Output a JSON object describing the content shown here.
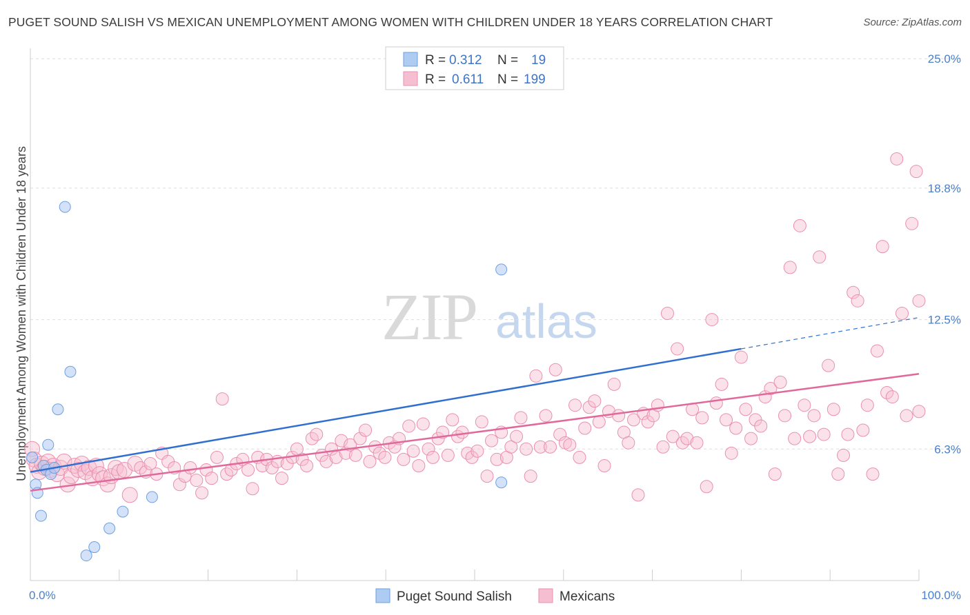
{
  "title": "PUGET SOUND SALISH VS MEXICAN UNEMPLOYMENT AMONG WOMEN WITH CHILDREN UNDER 18 YEARS CORRELATION CHART",
  "source": "Source: ZipAtlas.com",
  "watermark": {
    "zip": "ZIP",
    "atlas": "atlas"
  },
  "colors": {
    "puget_fill": "#aecbf2",
    "puget_stroke": "#6e9fe0",
    "puget_line": "#2f6fcf",
    "mex_fill": "#f6bfd1",
    "mex_stroke": "#e98fb0",
    "mex_line": "#e0689a",
    "tick_text": "#4a7fc9",
    "grid": "#dddddd"
  },
  "legend": {
    "rows": [
      {
        "r_label": "R =",
        "r_value": "0.312",
        "n_label": "N =",
        "n_value": "19"
      },
      {
        "r_label": "R =",
        "r_value": "0.611",
        "n_label": "N =",
        "n_value": "199"
      }
    ]
  },
  "chart_data": {
    "type": "scatter",
    "title": "PUGET SOUND SALISH VS MEXICAN UNEMPLOYMENT AMONG WOMEN WITH CHILDREN UNDER 18 YEARS CORRELATION CHART",
    "xlabel": "",
    "ylabel": "Unemployment Among Women with Children Under 18 years",
    "xlim": [
      0,
      100
    ],
    "ylim": [
      0,
      25.5
    ],
    "x_tick_labels": [
      "0.0%",
      "100.0%"
    ],
    "y_ticks": [
      6.3,
      12.5,
      18.8,
      25.0
    ],
    "y_tick_labels": [
      "6.3%",
      "12.5%",
      "18.8%",
      "25.0%"
    ],
    "grid": "horizontal dashed",
    "legend_placement": "top-center",
    "series": [
      {
        "name": "Puget Sound Salish",
        "r": 0.312,
        "n": 19,
        "trend": {
          "x": [
            0,
            80
          ],
          "y": [
            5.2,
            11.1
          ],
          "dashed_extension": {
            "x": [
              80,
              100
            ],
            "y": [
              11.1,
              12.6
            ]
          }
        },
        "points": [
          [
            0.2,
            5.9
          ],
          [
            0.6,
            4.6
          ],
          [
            0.8,
            4.2
          ],
          [
            1.2,
            3.1
          ],
          [
            1.5,
            5.5
          ],
          [
            1.8,
            5.3
          ],
          [
            2.0,
            6.5
          ],
          [
            2.3,
            5.1
          ],
          [
            2.7,
            5.4
          ],
          [
            3.1,
            8.2
          ],
          [
            3.9,
            17.9
          ],
          [
            4.5,
            10.0
          ],
          [
            6.3,
            1.2
          ],
          [
            7.2,
            1.6
          ],
          [
            8.9,
            2.5
          ],
          [
            10.4,
            3.3
          ],
          [
            13.7,
            4.0
          ],
          [
            53.0,
            14.9
          ],
          [
            53.0,
            4.7
          ]
        ]
      },
      {
        "name": "Mexicans",
        "r": 0.611,
        "n": 199,
        "trend": {
          "x": [
            0,
            100
          ],
          "y": [
            4.3,
            9.9
          ]
        },
        "points": [
          [
            0.2,
            6.3
          ],
          [
            0.4,
            5.8
          ],
          [
            0.7,
            5.5
          ],
          [
            1.0,
            5.2
          ],
          [
            1.3,
            5.6
          ],
          [
            1.6,
            5.4
          ],
          [
            2.0,
            5.7
          ],
          [
            2.3,
            5.3
          ],
          [
            2.6,
            5.5
          ],
          [
            3.0,
            5.1
          ],
          [
            3.4,
            5.4
          ],
          [
            3.8,
            5.7
          ],
          [
            4.2,
            4.6
          ],
          [
            4.6,
            5.0
          ],
          [
            5.0,
            5.5
          ],
          [
            5.4,
            5.3
          ],
          [
            5.8,
            5.6
          ],
          [
            6.2,
            5.2
          ],
          [
            6.6,
            5.4
          ],
          [
            7.0,
            4.9
          ],
          [
            7.4,
            5.5
          ],
          [
            7.8,
            5.1
          ],
          [
            8.2,
            4.9
          ],
          [
            8.7,
            4.6
          ],
          [
            9.1,
            5.0
          ],
          [
            9.6,
            5.4
          ],
          [
            10.0,
            5.2
          ],
          [
            10.6,
            5.3
          ],
          [
            11.2,
            4.1
          ],
          [
            11.8,
            5.6
          ],
          [
            12.4,
            5.4
          ],
          [
            13.0,
            5.2
          ],
          [
            13.5,
            5.6
          ],
          [
            14.2,
            5.1
          ],
          [
            14.8,
            6.1
          ],
          [
            15.5,
            5.7
          ],
          [
            16.2,
            5.4
          ],
          [
            16.8,
            4.6
          ],
          [
            17.4,
            5.0
          ],
          [
            18.0,
            5.4
          ],
          [
            18.7,
            4.8
          ],
          [
            19.3,
            4.2
          ],
          [
            19.8,
            5.3
          ],
          [
            20.4,
            4.9
          ],
          [
            21.0,
            5.9
          ],
          [
            21.6,
            8.7
          ],
          [
            22.1,
            5.1
          ],
          [
            22.6,
            5.3
          ],
          [
            23.2,
            5.6
          ],
          [
            23.9,
            5.8
          ],
          [
            24.5,
            5.3
          ],
          [
            25.0,
            4.4
          ],
          [
            25.6,
            5.9
          ],
          [
            26.1,
            5.5
          ],
          [
            26.6,
            5.8
          ],
          [
            27.2,
            5.4
          ],
          [
            27.8,
            5.7
          ],
          [
            28.3,
            4.9
          ],
          [
            28.9,
            5.6
          ],
          [
            29.5,
            5.9
          ],
          [
            30.0,
            6.3
          ],
          [
            30.6,
            5.8
          ],
          [
            31.1,
            5.5
          ],
          [
            31.7,
            6.8
          ],
          [
            32.2,
            7.0
          ],
          [
            32.8,
            6.0
          ],
          [
            33.3,
            5.7
          ],
          [
            33.9,
            6.3
          ],
          [
            34.4,
            5.9
          ],
          [
            35.0,
            6.7
          ],
          [
            35.5,
            6.1
          ],
          [
            36.0,
            6.5
          ],
          [
            36.6,
            6.0
          ],
          [
            37.1,
            6.8
          ],
          [
            37.7,
            7.2
          ],
          [
            38.2,
            5.7
          ],
          [
            38.8,
            6.4
          ],
          [
            39.3,
            6.1
          ],
          [
            39.9,
            5.9
          ],
          [
            40.4,
            6.6
          ],
          [
            41.0,
            6.4
          ],
          [
            41.5,
            6.8
          ],
          [
            42.0,
            5.8
          ],
          [
            42.6,
            7.4
          ],
          [
            43.1,
            6.2
          ],
          [
            43.7,
            5.5
          ],
          [
            44.2,
            7.5
          ],
          [
            44.8,
            6.3
          ],
          [
            45.3,
            5.9
          ],
          [
            45.9,
            6.8
          ],
          [
            46.4,
            7.1
          ],
          [
            47.0,
            6.0
          ],
          [
            47.5,
            7.7
          ],
          [
            48.1,
            6.9
          ],
          [
            48.6,
            7.1
          ],
          [
            49.2,
            6.1
          ],
          [
            49.7,
            5.9
          ],
          [
            50.3,
            6.2
          ],
          [
            50.8,
            7.6
          ],
          [
            51.4,
            5.0
          ],
          [
            51.9,
            6.7
          ],
          [
            52.5,
            5.8
          ],
          [
            53.0,
            7.1
          ],
          [
            53.6,
            5.9
          ],
          [
            54.1,
            6.4
          ],
          [
            54.7,
            6.9
          ],
          [
            55.2,
            7.8
          ],
          [
            55.8,
            6.3
          ],
          [
            56.3,
            5.0
          ],
          [
            56.9,
            9.8
          ],
          [
            57.4,
            6.4
          ],
          [
            58.0,
            7.9
          ],
          [
            58.5,
            6.4
          ],
          [
            59.1,
            10.1
          ],
          [
            59.6,
            7.0
          ],
          [
            60.2,
            6.6
          ],
          [
            60.7,
            6.5
          ],
          [
            61.3,
            8.4
          ],
          [
            61.8,
            5.9
          ],
          [
            62.4,
            7.3
          ],
          [
            62.9,
            8.3
          ],
          [
            63.5,
            8.6
          ],
          [
            64.0,
            7.6
          ],
          [
            64.6,
            5.5
          ],
          [
            65.1,
            8.1
          ],
          [
            65.7,
            9.4
          ],
          [
            66.2,
            7.9
          ],
          [
            66.8,
            7.1
          ],
          [
            67.3,
            6.6
          ],
          [
            67.9,
            7.7
          ],
          [
            68.4,
            4.1
          ],
          [
            69.0,
            8.0
          ],
          [
            69.5,
            7.6
          ],
          [
            70.1,
            7.9
          ],
          [
            70.6,
            8.4
          ],
          [
            71.2,
            6.4
          ],
          [
            71.7,
            12.8
          ],
          [
            72.3,
            6.9
          ],
          [
            72.8,
            11.1
          ],
          [
            73.4,
            6.6
          ],
          [
            73.9,
            6.8
          ],
          [
            74.5,
            8.2
          ],
          [
            75.0,
            6.6
          ],
          [
            75.6,
            7.8
          ],
          [
            76.1,
            4.5
          ],
          [
            76.7,
            12.5
          ],
          [
            77.2,
            8.5
          ],
          [
            77.8,
            9.4
          ],
          [
            78.3,
            7.7
          ],
          [
            78.9,
            6.1
          ],
          [
            79.4,
            7.3
          ],
          [
            80.0,
            10.7
          ],
          [
            80.5,
            8.2
          ],
          [
            81.1,
            6.8
          ],
          [
            81.6,
            7.7
          ],
          [
            82.2,
            7.4
          ],
          [
            82.7,
            8.8
          ],
          [
            83.3,
            9.2
          ],
          [
            83.8,
            5.1
          ],
          [
            84.4,
            9.5
          ],
          [
            84.9,
            7.9
          ],
          [
            85.5,
            15.0
          ],
          [
            86.0,
            6.8
          ],
          [
            86.6,
            17.0
          ],
          [
            87.1,
            8.4
          ],
          [
            87.7,
            6.9
          ],
          [
            88.2,
            7.9
          ],
          [
            88.8,
            15.5
          ],
          [
            89.3,
            7.0
          ],
          [
            89.8,
            10.3
          ],
          [
            90.4,
            8.2
          ],
          [
            90.9,
            5.1
          ],
          [
            91.5,
            6.0
          ],
          [
            92.0,
            7.0
          ],
          [
            92.6,
            13.8
          ],
          [
            93.1,
            13.4
          ],
          [
            93.7,
            7.2
          ],
          [
            94.2,
            8.4
          ],
          [
            94.8,
            5.1
          ],
          [
            95.3,
            11.0
          ],
          [
            95.9,
            16.0
          ],
          [
            96.4,
            9.0
          ],
          [
            97.0,
            8.8
          ],
          [
            97.5,
            20.2
          ],
          [
            98.1,
            12.8
          ],
          [
            98.6,
            7.9
          ],
          [
            99.2,
            17.1
          ],
          [
            99.7,
            19.6
          ],
          [
            100.0,
            8.1
          ],
          [
            100.0,
            13.4
          ]
        ]
      }
    ]
  },
  "bottom_legend": [
    {
      "label": "Puget Sound Salish"
    },
    {
      "label": "Mexicans"
    }
  ]
}
